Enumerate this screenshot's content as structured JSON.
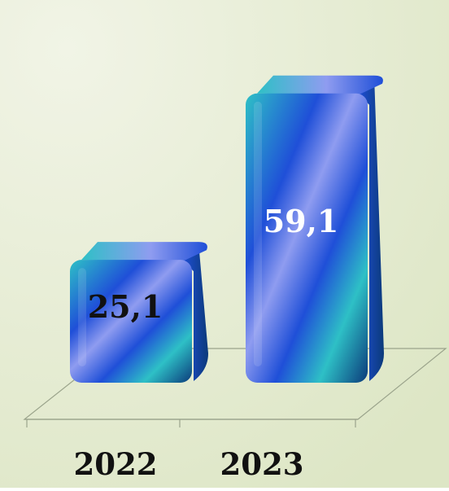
{
  "chart_data": {
    "type": "bar",
    "categories": [
      "2022",
      "2023"
    ],
    "values": [
      25.1,
      59.1
    ],
    "value_labels": [
      "25,1",
      "59,1"
    ],
    "title": "",
    "xlabel": "",
    "ylabel": "",
    "ylim": [
      0,
      70
    ],
    "grid": false,
    "legend": "none",
    "style": "3d-cylinder-rounded",
    "colors": {
      "background_light": "#f1f4e6",
      "background_dark": "#dde6c5",
      "bar_teal": "#2ec0c6",
      "bar_lavender": "#8f9cf0",
      "bar_blue": "#1f4fd8",
      "bar_dark": "#0b3a7a",
      "value_label_first": "#111111",
      "value_label_second": "#ffffff",
      "axis_line": "#9aa38b",
      "category_text": "#111111"
    }
  }
}
